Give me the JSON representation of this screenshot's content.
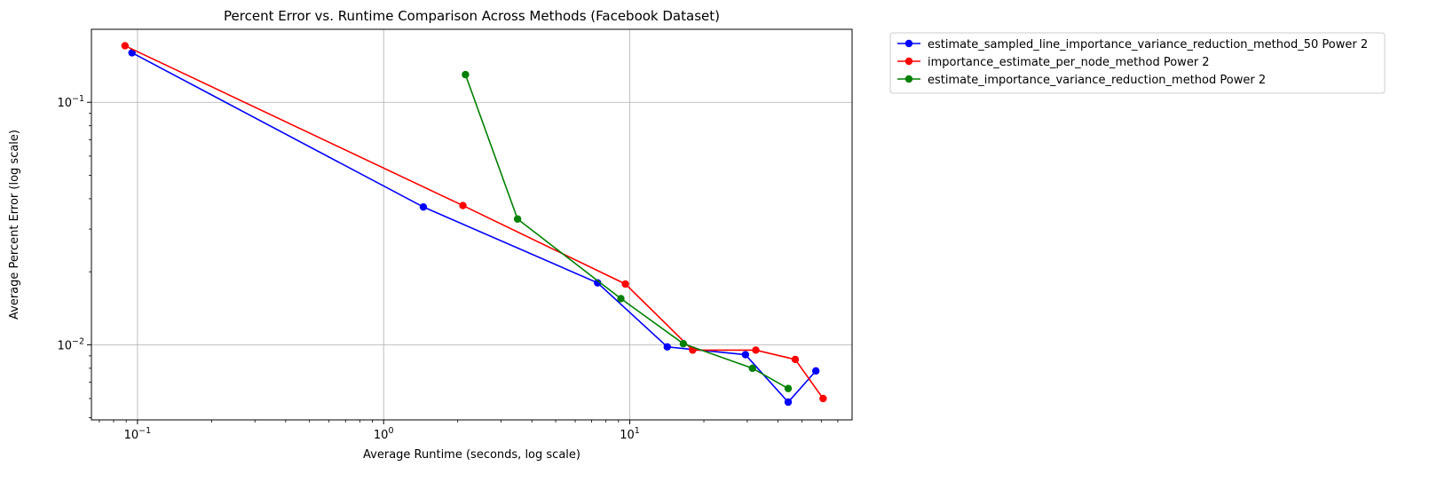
{
  "chart_data": {
    "type": "line",
    "title": "Percent Error vs. Runtime Comparison Across Methods (Facebook Dataset)",
    "xlabel": "Average Runtime (seconds, log scale)",
    "ylabel": "Average Percent Error (log scale)",
    "xscale": "log",
    "yscale": "log",
    "xlim": [
      0.065,
      80
    ],
    "ylim": [
      0.0049,
      0.2
    ],
    "grid": true,
    "legend_position": "outside-top-right",
    "x_ticks": [
      {
        "value": 0.1,
        "base": "10",
        "exp": "−1"
      },
      {
        "value": 1,
        "base": "10",
        "exp": "0"
      },
      {
        "value": 10,
        "base": "10",
        "exp": "1"
      }
    ],
    "y_ticks": [
      {
        "value": 0.1,
        "base": "10",
        "exp": "−1"
      },
      {
        "value": 0.01,
        "base": "10",
        "exp": "−2"
      }
    ],
    "series": [
      {
        "name": "estimate_sampled_line_importance_variance_reduction_method_50 Power 2",
        "color": "#0000ff",
        "x": [
          0.095,
          1.45,
          7.4,
          14.2,
          29.5,
          44,
          57
        ],
        "y": [
          0.16,
          0.037,
          0.018,
          0.0098,
          0.0091,
          0.0058,
          0.0078
        ]
      },
      {
        "name": "importance_estimate_per_node_method Power 2",
        "color": "#ff0000",
        "x": [
          0.089,
          2.1,
          9.6,
          18,
          32.5,
          47,
          61
        ],
        "y": [
          0.171,
          0.0375,
          0.0178,
          0.0095,
          0.0095,
          0.0087,
          0.006
        ]
      },
      {
        "name": "estimate_importance_variance_reduction_method Power 2",
        "color": "#008000",
        "x": [
          2.15,
          3.5,
          9.2,
          16.5,
          31.5,
          44
        ],
        "y": [
          0.13,
          0.033,
          0.0155,
          0.0101,
          0.008,
          0.0066
        ]
      }
    ]
  }
}
